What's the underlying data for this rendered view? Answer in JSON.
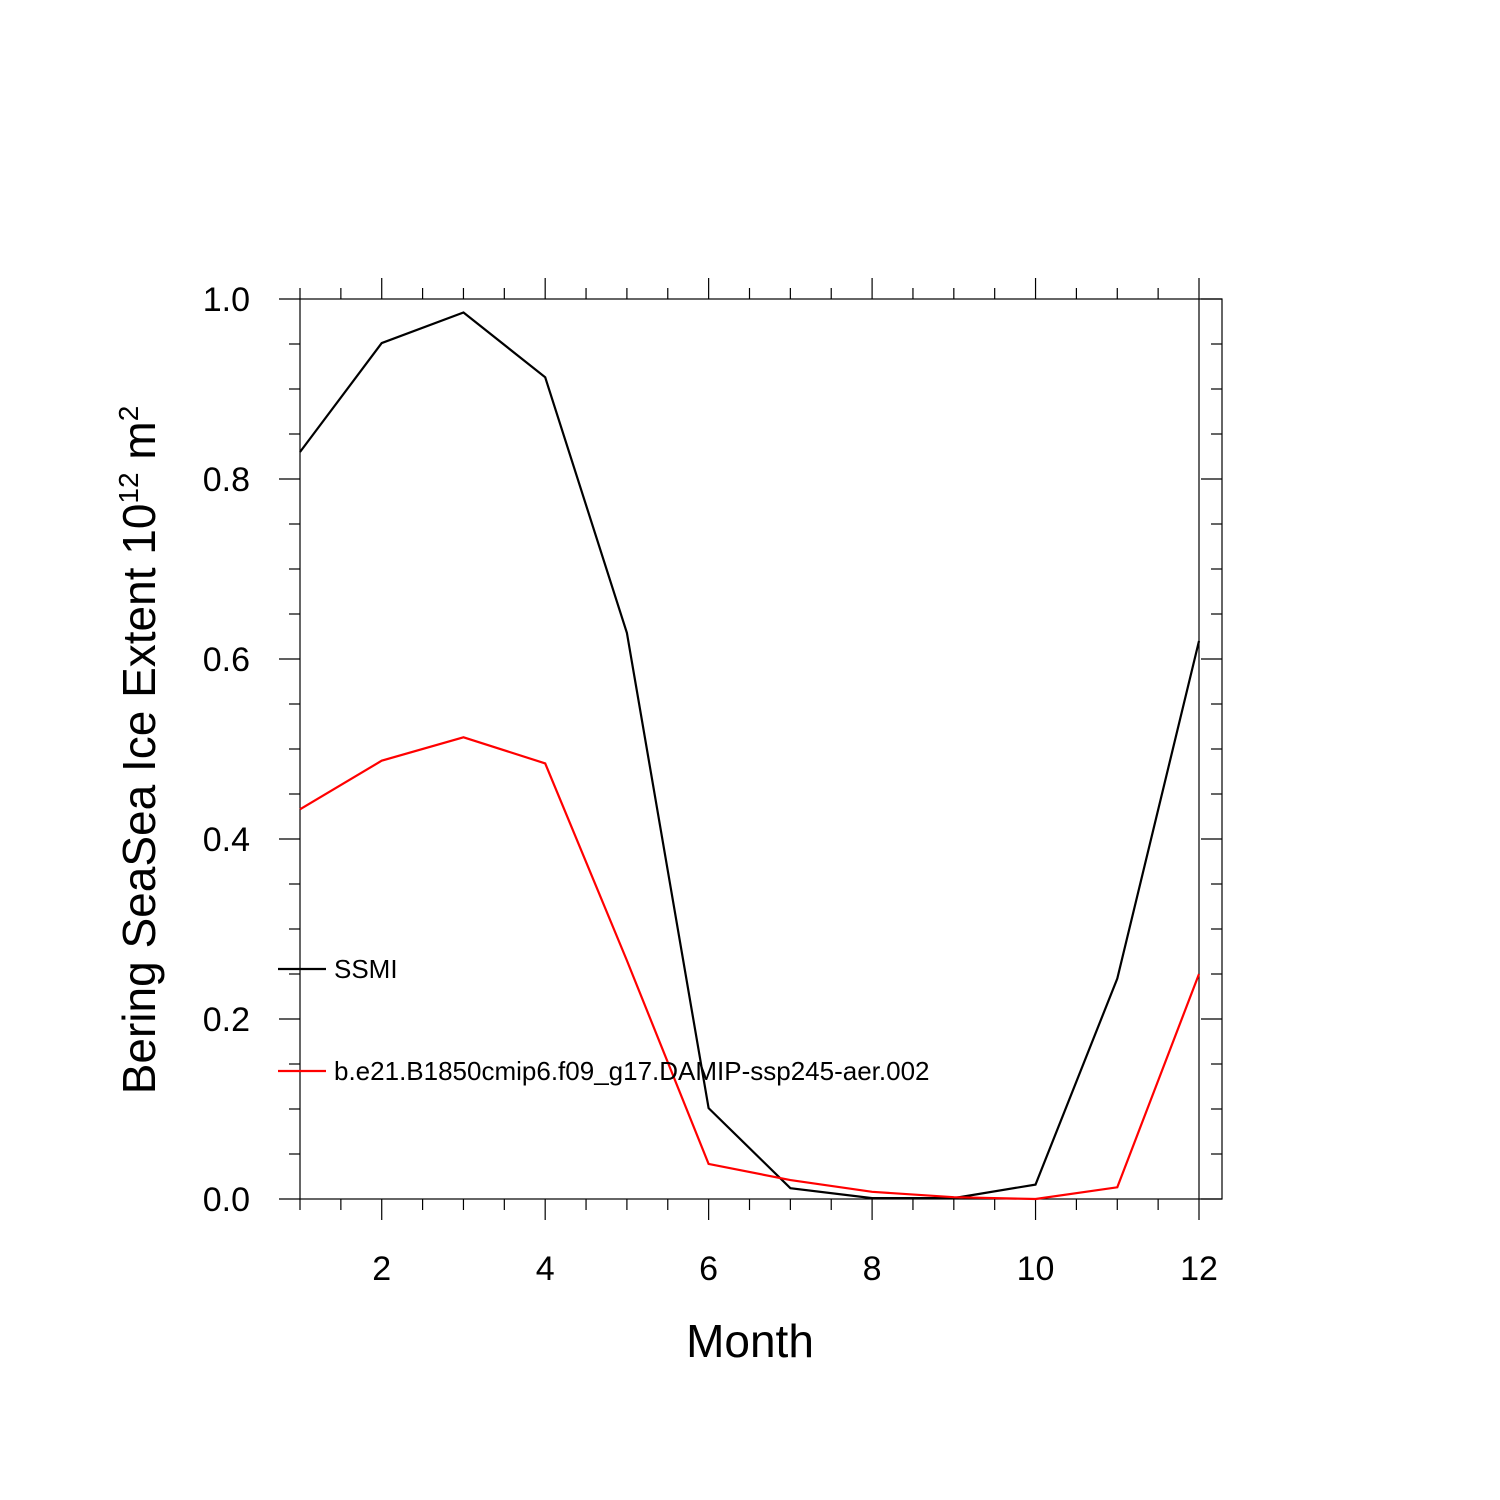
{
  "chart_data": {
    "type": "line",
    "title": "",
    "xlabel": "Month",
    "ylabel": {
      "main": "Bering SeaSea Ice Extent 10",
      "exponent": "12",
      "unit": " m",
      "unit_exponent": "2"
    },
    "xlim": [
      1,
      12
    ],
    "ylim": [
      0,
      1.0
    ],
    "x": [
      1,
      2,
      3,
      4,
      5,
      6,
      7,
      8,
      9,
      10,
      11,
      12
    ],
    "x_ticks": [
      2,
      4,
      6,
      8,
      10,
      12
    ],
    "x_tick_labels": [
      "2",
      "4",
      "6",
      "8",
      "10",
      "12"
    ],
    "y_ticks": [
      0,
      0.2,
      0.4,
      0.6,
      0.8,
      1.0
    ],
    "y_tick_labels": [
      "0.0",
      "0.2",
      "0.4",
      "0.6",
      "0.8",
      "1.0"
    ],
    "grid": false,
    "legend_position": "left-inside",
    "series": [
      {
        "name": "SSMI",
        "color": "#000000",
        "values": [
          0.83,
          0.951,
          0.985,
          0.913,
          0.629,
          0.101,
          0.012,
          0.001,
          0.001,
          0.016,
          0.245,
          0.62
        ]
      },
      {
        "name": "b.e21.B1850cmip6.f09_g17.DAMIP-ssp245-aer.002",
        "color": "#ff0000",
        "values": [
          0.433,
          0.487,
          0.513,
          0.484,
          0.265,
          0.039,
          0.021,
          0.008,
          0.002,
          0.0,
          0.013,
          0.25
        ]
      }
    ]
  }
}
